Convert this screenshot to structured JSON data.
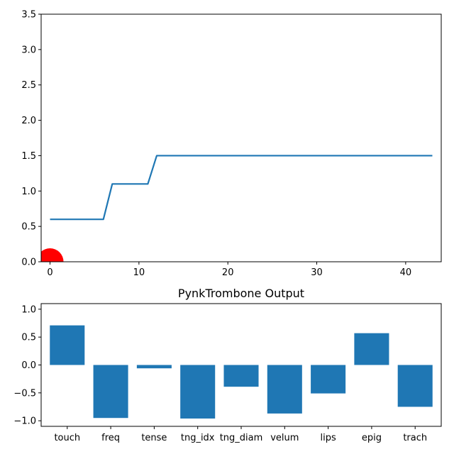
{
  "chart_data": [
    {
      "type": "line",
      "title": "",
      "xlabel": "",
      "ylabel": "",
      "xlim": [
        -1,
        44
      ],
      "ylim": [
        0,
        3.5
      ],
      "xticks": [
        0,
        10,
        20,
        30,
        40
      ],
      "yticks": [
        0.0,
        0.5,
        1.0,
        1.5,
        2.0,
        2.5,
        3.0,
        3.5
      ],
      "grid": false,
      "colors": {
        "line": "#1f77b4",
        "marker": "#ff0000"
      },
      "series": [
        {
          "x": [
            0,
            6,
            7,
            11,
            12,
            43
          ],
          "y": [
            0.6,
            0.6,
            1.1,
            1.1,
            1.5,
            1.5
          ]
        }
      ],
      "marker": {
        "x": 0,
        "y": 0,
        "shape": "circle"
      }
    },
    {
      "type": "bar",
      "title": "PynkTrombone Output",
      "xlabel": "",
      "ylabel": "",
      "ylim": [
        -1.1,
        1.1
      ],
      "yticks": [
        -1.0,
        -0.5,
        0.0,
        0.5,
        1.0
      ],
      "grid": false,
      "colors": {
        "bar": "#1f77b4"
      },
      "categories": [
        "touch",
        "freq",
        "tense",
        "tng_idx",
        "tng_diam",
        "velum",
        "lips",
        "epig",
        "trach"
      ],
      "values": [
        0.71,
        -0.95,
        -0.06,
        -0.96,
        -0.39,
        -0.87,
        -0.51,
        0.57,
        -0.75
      ]
    }
  ]
}
